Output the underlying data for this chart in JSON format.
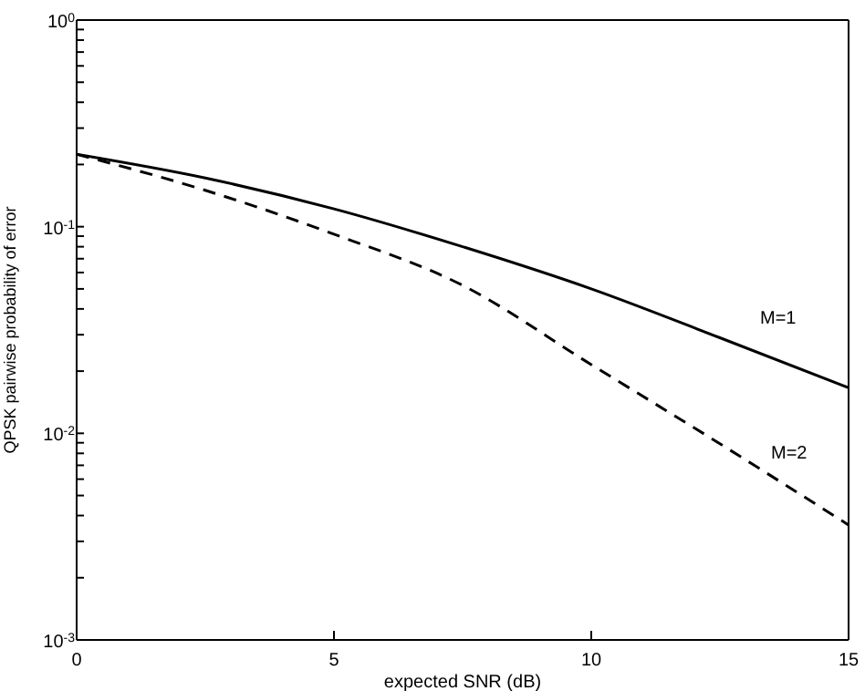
{
  "chart_data": {
    "type": "line",
    "xlabel": "expected SNR (dB)",
    "ylabel": "QPSK pairwise probability of error",
    "x": [
      0,
      2.5,
      5,
      7.5,
      10,
      12.5,
      15
    ],
    "series": [
      {
        "name": "M=1",
        "color": "#000000",
        "line_style": "solid",
        "values": [
          0.224,
          0.172,
          0.122,
          0.08,
          0.05,
          0.029,
          0.0166
        ]
      },
      {
        "name": "M=2",
        "color": "#000000",
        "line_style": "dashed",
        "values": [
          0.224,
          0.15,
          0.092,
          0.052,
          0.0215,
          0.0089,
          0.0036
        ]
      }
    ],
    "log": "y",
    "xlim": [
      0,
      15
    ],
    "xticks": [
      0,
      5,
      10,
      15
    ],
    "ylim": [
      0.001,
      1
    ],
    "yticks": [
      {
        "value": 0.001,
        "label": "10$^{-3}$"
      },
      {
        "value": 0.002,
        "label": null
      },
      {
        "value": 0.003,
        "label": null
      },
      {
        "value": 0.004,
        "label": null
      },
      {
        "value": 0.005,
        "label": null
      },
      {
        "value": 0.006,
        "label": null
      },
      {
        "value": 0.007,
        "label": null
      },
      {
        "value": 0.008,
        "label": null
      },
      {
        "value": 0.009,
        "label": null
      },
      {
        "value": 0.01,
        "label": "10$^{-2}$"
      },
      {
        "value": 0.02,
        "label": null
      },
      {
        "value": 0.03,
        "label": null
      },
      {
        "value": 0.04,
        "label": null
      },
      {
        "value": 0.05,
        "label": null
      },
      {
        "value": 0.06,
        "label": null
      },
      {
        "value": 0.07,
        "label": null
      },
      {
        "value": 0.08,
        "label": null
      },
      {
        "value": 0.09,
        "label": null
      },
      {
        "value": 0.1,
        "label": "10$^{-1}$"
      },
      {
        "value": 0.2,
        "label": null
      },
      {
        "value": 0.3,
        "label": null
      },
      {
        "value": 0.4,
        "label": null
      },
      {
        "value": 0.5,
        "label": null
      },
      {
        "value": 0.6,
        "label": null
      },
      {
        "value": 0.7,
        "label": null
      },
      {
        "value": 0.8,
        "label": null
      },
      {
        "value": 0.9,
        "label": null
      },
      {
        "value": 1,
        "label": "10$^{0}$"
      }
    ],
    "grid": false,
    "legend": false,
    "marker": "none"
  }
}
